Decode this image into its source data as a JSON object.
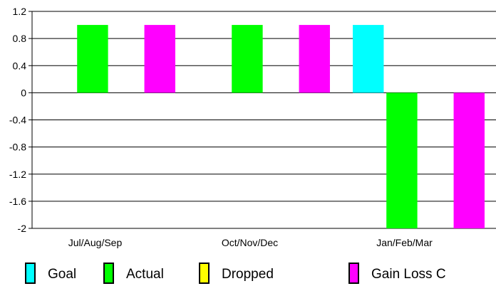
{
  "chart_data": {
    "type": "bar",
    "title": "",
    "xlabel": "",
    "ylabel": "",
    "ylim": [
      -2,
      1.2
    ],
    "yticks": [
      1.2,
      0.8,
      0.4,
      0,
      -0.4,
      -0.8,
      -1.2,
      -1.6,
      -2
    ],
    "ytick_labels": [
      "1.2",
      "0.8",
      "0.4",
      "0",
      "-0.4",
      "-0.8",
      "-1.2",
      "-1.6",
      "-2"
    ],
    "grid": true,
    "legend_position": "bottom",
    "categories": [
      "Jul/Aug/Sep",
      "Oct/Nov/Dec",
      "Jan/Feb/Mar"
    ],
    "series": [
      {
        "name": "Goal",
        "color": "#00ffff",
        "values": [
          0,
          0,
          1
        ]
      },
      {
        "name": "Actual",
        "color": "#00ff00",
        "values": [
          1,
          1,
          -2
        ]
      },
      {
        "name": "Dropped",
        "color": "#ffff00",
        "values": [
          0,
          0,
          0
        ]
      },
      {
        "name": "Gain Loss C",
        "color": "#ff00ff",
        "values": [
          1,
          1,
          -2
        ]
      }
    ]
  }
}
